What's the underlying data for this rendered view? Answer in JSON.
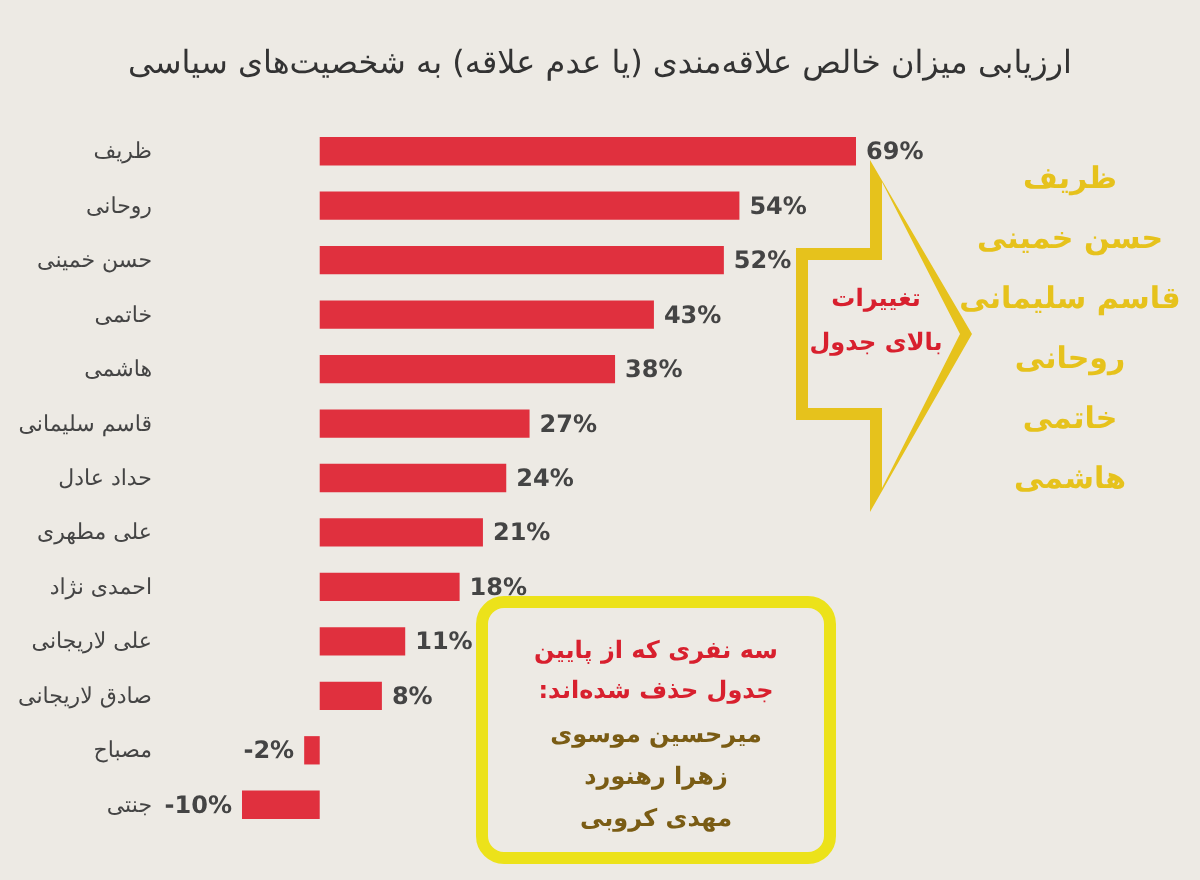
{
  "chart_data": {
    "type": "bar",
    "orientation": "horizontal",
    "title": "ارزیابی میزان خالص علاقه‌مندی (یا عدم علاقه) به شخصیت‌های سیاسی",
    "categories": [
      "ظریف",
      "روحانی",
      "حسن خمینی",
      "خاتمی",
      "هاشمی",
      "قاسم سلیمانی",
      "حداد عادل",
      "علی مطهری",
      "احمدی نژاد",
      "علی لاریجانی",
      "صادق لاریجانی",
      "مصباح",
      "جنتی"
    ],
    "values": [
      69,
      54,
      52,
      43,
      38,
      27,
      24,
      21,
      18,
      11,
      8,
      -2,
      -10
    ],
    "value_labels": [
      "69%",
      "54%",
      "52%",
      "43%",
      "38%",
      "27%",
      "24%",
      "21%",
      "18%",
      "11%",
      "8%",
      "-2%",
      "-10%"
    ],
    "color": "#e0303e",
    "tick_labels": "y",
    "annotations": [
      "تغییرات",
      "بالای جدول",
      "ظریف",
      "حسن خمینی",
      "قاسم سلیمانی",
      "روحانی",
      "خاتمی",
      "هاشمی",
      "سه نفری که از پایین",
      "جدول حذف شده‌اند:",
      "میرحسین موسوی",
      "زهرا رهنورد",
      "مهدی کروبی"
    ]
  }
}
